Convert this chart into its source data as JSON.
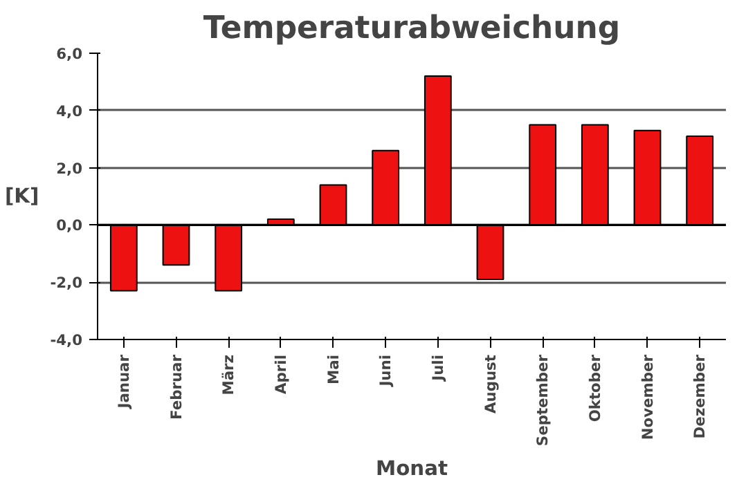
{
  "chart_data": {
    "type": "bar",
    "title": "Temperaturabweichung",
    "xlabel": "Monat",
    "ylabel": "[K]",
    "categories": [
      "Januar",
      "Februar",
      "März",
      "April",
      "Mai",
      "Juni",
      "Juli",
      "August",
      "September",
      "Oktober",
      "November",
      "Dezember"
    ],
    "values": [
      -2.3,
      -1.4,
      -2.3,
      0.2,
      1.4,
      2.6,
      5.2,
      -1.9,
      3.5,
      3.5,
      3.3,
      3.1
    ],
    "color": "#ee1111",
    "ylim": [
      -4,
      6
    ],
    "yticks": [
      {
        "value": -4,
        "label": "-4,0"
      },
      {
        "value": -2,
        "label": "-2,0"
      },
      {
        "value": 0,
        "label": "0,0"
      },
      {
        "value": 2,
        "label": "2,0"
      },
      {
        "value": 4,
        "label": "4,0"
      },
      {
        "value": 6,
        "label": "6,0"
      }
    ],
    "grid": "y",
    "ref_lines": [
      {
        "axis": "y",
        "value": 0,
        "color": "#000000"
      }
    ]
  }
}
